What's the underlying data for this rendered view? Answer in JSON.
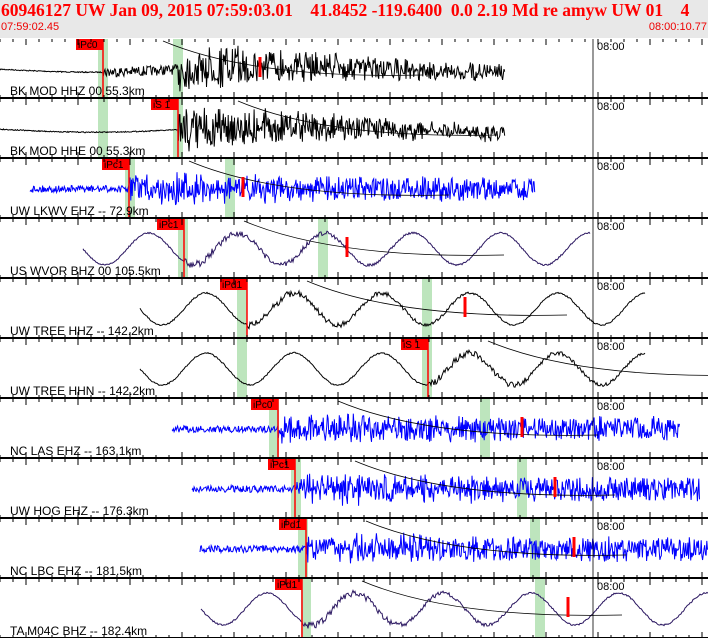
{
  "header": {
    "title": "60946127 UW Jan 09, 2015 07:59:03.01    41.8452 -119.6400  0.0 2.19 Md re amyw UW 01    4",
    "start_time": "07:59:02.45",
    "end_time": "08:00:10.77"
  },
  "colors": {
    "header_text": "#ff0000",
    "pick": "#ff0000",
    "pick_window": "#bde5bd",
    "black": "#000000",
    "blue": "#0000ff",
    "purple": "#2a1660",
    "header_bg": "#e8e8e8"
  },
  "panels": [
    {
      "label": "BK MOD HHZ 00 55.3km",
      "time_label": "08:00",
      "pick": "iPc0",
      "color": "black",
      "kind": "hf"
    },
    {
      "label": "BK MOD HHE 00 55.3km",
      "time_label": "08:00",
      "pick": "iS 1",
      "color": "black",
      "kind": "hf"
    },
    {
      "label": "UW LKWV EHZ -- 72.9km",
      "time_label": "08:00",
      "pick": "iPc1",
      "color": "blue",
      "kind": "noisy"
    },
    {
      "label": "US WVOR BHZ 00 105.5km",
      "time_label": "08:00",
      "pick": "iPc1",
      "color": "purple",
      "kind": "lp"
    },
    {
      "label": "UW TREE HHZ -- 142.2km",
      "time_label": "08:00",
      "pick": "iPd1",
      "color": "black",
      "kind": "lp"
    },
    {
      "label": "UW TREE HHN -- 142.2km",
      "time_label": "08:00",
      "pick": "iS 1",
      "color": "black",
      "kind": "lp"
    },
    {
      "label": "NC LAS EHZ -- 163.1km",
      "time_label": "08:00",
      "pick": "iPc0",
      "color": "blue",
      "kind": "noisy"
    },
    {
      "label": "UW HOG EHZ -- 176.3km",
      "time_label": "08:00",
      "pick": "iPc1",
      "color": "blue",
      "kind": "noisy"
    },
    {
      "label": "NC LBC EHZ -- 181.5km",
      "time_label": "08:00",
      "pick": "iPd1",
      "color": "blue",
      "kind": "noisy"
    },
    {
      "label": "TA M04C BHZ -- 182.4km",
      "time_label": "08:00",
      "pick": "iPd1",
      "color": "purple",
      "kind": "lp"
    }
  ]
}
